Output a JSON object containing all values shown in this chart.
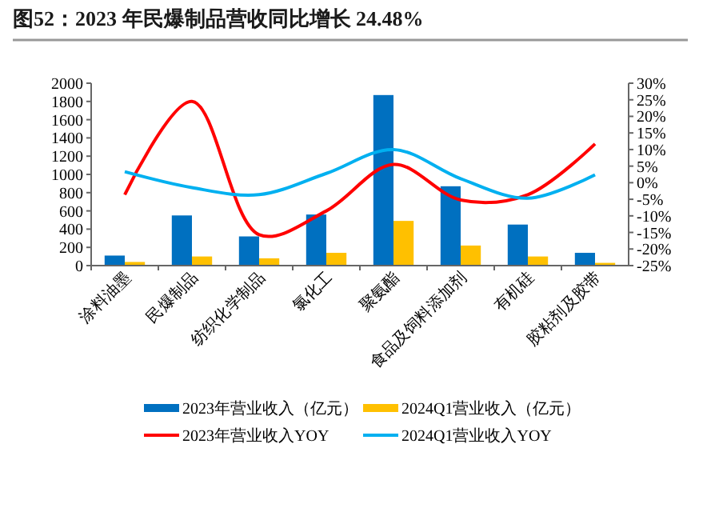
{
  "chart_data": {
    "type": "bar",
    "title": "图52：2023 年民爆制品营收同比增长 24.48%",
    "categories": [
      "涂料油墨",
      "民爆制品",
      "纺织化学制品",
      "氯化工",
      "聚氨酯",
      "食品及饲料添加剂",
      "有机硅",
      "胶粘剂及胶带"
    ],
    "series": [
      {
        "name": "2023年营业收入（亿元）",
        "color": "#0070c0",
        "values": [
          110,
          550,
          320,
          560,
          1870,
          870,
          450,
          140
        ]
      },
      {
        "name": "2024Q1营业收入（亿元）",
        "color": "#ffc000",
        "values": [
          40,
          100,
          80,
          140,
          490,
          220,
          100,
          30
        ]
      },
      {
        "name": "2023年营业收入YOY",
        "type": "line",
        "axis": "y2",
        "color": "#ff0000",
        "values": [
          -3.6,
          24.5,
          -15.7,
          -8.5,
          5.5,
          -5.2,
          -3.6,
          11.7
        ]
      },
      {
        "name": "2024Q1营业收入YOY",
        "type": "line",
        "axis": "y2",
        "color": "#00b0f0",
        "values": [
          3.3,
          -1.5,
          -3.6,
          2.8,
          10,
          1.2,
          -4.7,
          2.4
        ]
      }
    ],
    "ylim": [
      0,
      2000
    ],
    "yticks": [
      0,
      200,
      400,
      600,
      800,
      1000,
      1200,
      1400,
      1600,
      1800,
      2000
    ],
    "y2lim": [
      -25,
      30
    ],
    "y2ticks": [
      {
        "value": -25,
        "label": "-25%"
      },
      {
        "value": -20,
        "label": "-20%"
      },
      {
        "value": -15,
        "label": "-15%"
      },
      {
        "value": -10,
        "label": "-10%"
      },
      {
        "value": -5,
        "label": "-5%"
      },
      {
        "value": 0,
        "label": "0%"
      },
      {
        "value": 5,
        "label": "5%"
      },
      {
        "value": 10,
        "label": "10%"
      },
      {
        "value": 15,
        "label": "15%"
      },
      {
        "value": 20,
        "label": "20%"
      },
      {
        "value": 25,
        "label": "25%"
      },
      {
        "value": 30,
        "label": "30%"
      }
    ],
    "legend": "bottom",
    "grid": false,
    "marker": "none",
    "line_style": "solid"
  }
}
